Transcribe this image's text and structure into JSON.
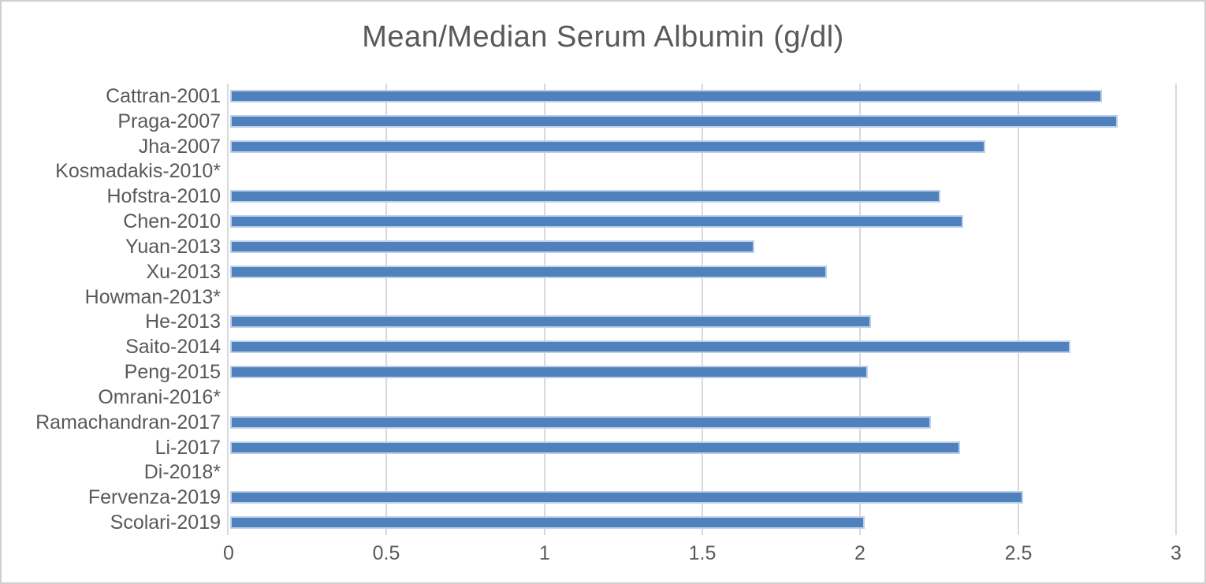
{
  "chart_data": {
    "type": "bar",
    "orientation": "horizontal",
    "title": "Mean/Median Serum Albumin (g/dl)",
    "categories": [
      "Cattran-2001",
      "Praga-2007",
      "Jha-2007",
      "Kosmadakis-2010*",
      "Hofstra-2010",
      "Chen-2010",
      "Yuan-2013",
      "Xu-2013",
      "Howman-2013*",
      "He-2013",
      "Saito-2014",
      "Peng-2015",
      "Omrani-2016*",
      "Ramachandran-2017",
      "Li-2017",
      "Di-2018*",
      "Fervenza-2019",
      "Scolari-2019"
    ],
    "values": [
      2.75,
      2.8,
      2.38,
      null,
      2.24,
      2.31,
      1.65,
      1.88,
      null,
      2.02,
      2.65,
      2.01,
      null,
      2.21,
      2.3,
      null,
      2.5,
      2.0
    ],
    "xlabel": "",
    "ylabel": "",
    "xlim": [
      0,
      3
    ],
    "xticks": [
      0,
      0.5,
      1,
      1.5,
      2,
      2.5,
      3
    ],
    "xtick_labels": [
      "0",
      "0.5",
      "1",
      "1.5",
      "2",
      "2.5",
      "3"
    ],
    "grid": true,
    "legend": false,
    "colors": {
      "bar_fill": "#4f81bd",
      "bar_border": "#bdd0e9",
      "gridline": "#d9d9d9",
      "axis_line": "#d9d9d9",
      "text": "#595959",
      "frame_border": "#d0d0d0",
      "background": "#ffffff"
    }
  }
}
